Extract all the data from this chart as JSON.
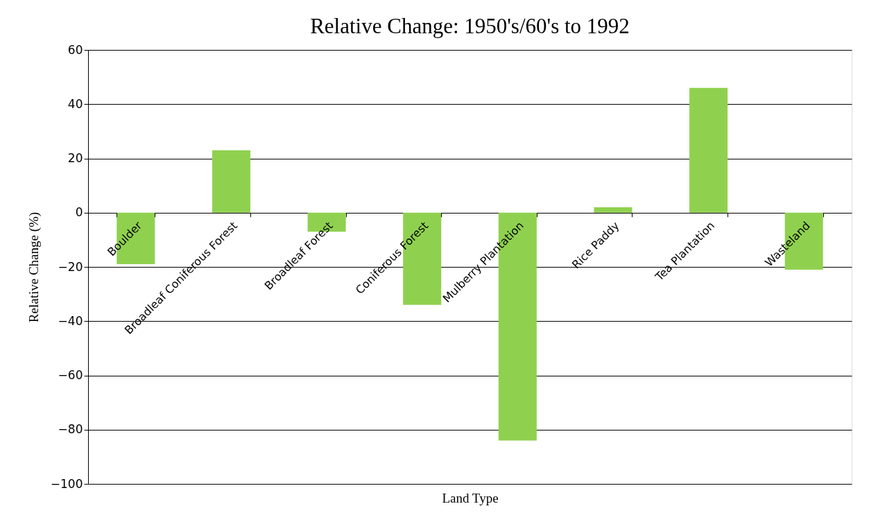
{
  "chart_data": {
    "type": "bar",
    "title": "Relative Change: 1950's/60's to 1992",
    "xlabel": "Land Type",
    "ylabel": "Relative Change (%)",
    "categories": [
      "Boulder",
      "Broadleaf Coniferous Forest",
      "Broadleaf Forest",
      "Coniferous Forest",
      "Mulberry Plantation",
      "Rice Paddy",
      "Tea Plantation",
      "Wasteland"
    ],
    "values": [
      -19,
      23,
      -7,
      -34,
      -84,
      2,
      46,
      -21
    ],
    "color": "#8fd14f",
    "ylim": [
      -100,
      60
    ],
    "yticks": [
      -100,
      -80,
      -60,
      -40,
      -20,
      0,
      20,
      40,
      60
    ],
    "grid": "y"
  }
}
